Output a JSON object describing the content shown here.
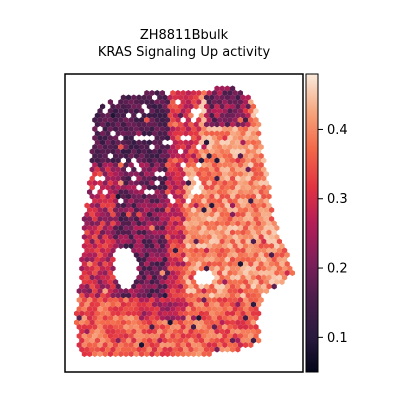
{
  "chart_data": {
    "type": "heatmap",
    "subtype": "spatial-hexbin",
    "title_lines": [
      "ZH8811Bbulk",
      "KRAS Signaling Up activity"
    ],
    "colormap": "rocket",
    "colorbar": {
      "vmin": 0.05,
      "vmax": 0.48,
      "ticks": [
        0.1,
        0.2,
        0.3,
        0.4
      ],
      "tick_labels": [
        "0.1",
        "0.2",
        "0.3",
        "0.4"
      ],
      "placement": "right"
    },
    "axes_visible": false,
    "value_zones": [
      {
        "region": "left-column",
        "typical_value": 0.22
      },
      {
        "region": "upper-left",
        "typical_value": 0.12
      },
      {
        "region": "center-right",
        "typical_value": 0.4
      },
      {
        "region": "right-lobe",
        "typical_value": 0.35
      },
      {
        "region": "bottom",
        "typical_value": 0.33
      }
    ]
  }
}
